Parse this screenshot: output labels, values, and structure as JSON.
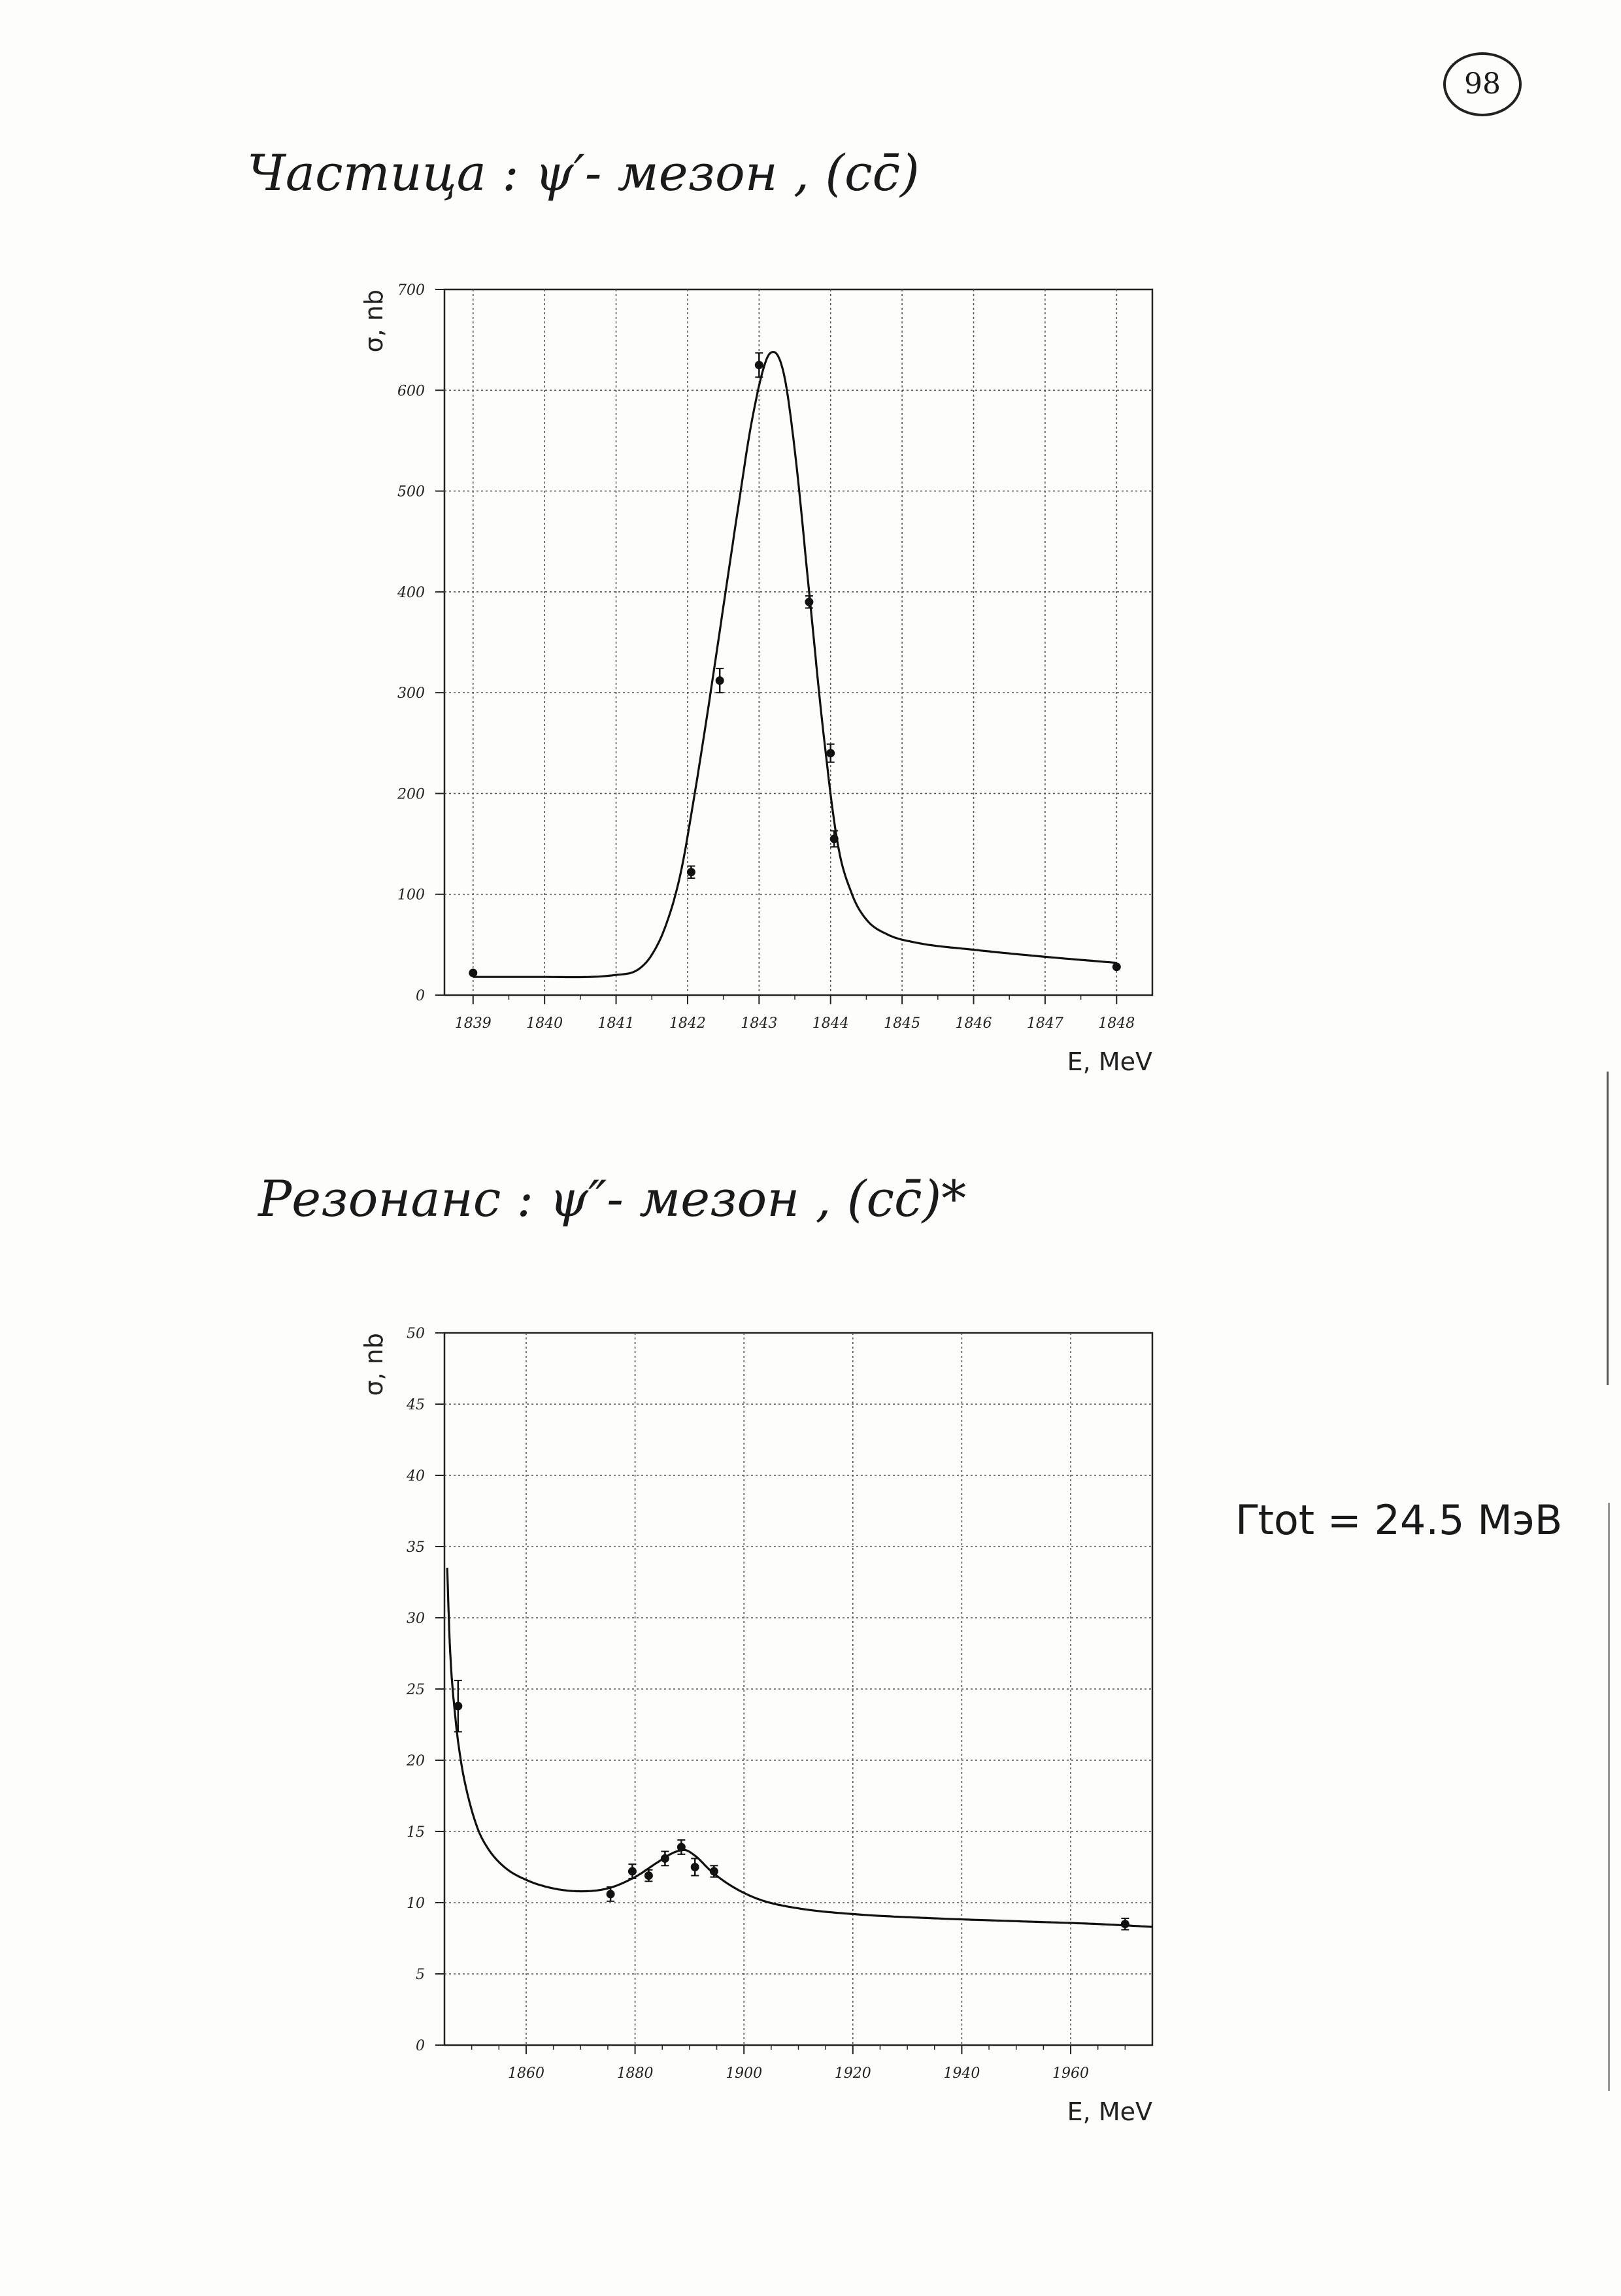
{
  "page": {
    "number": "98",
    "title1": "Частица :   ψ′- мезон , (cc̄)",
    "title2": "Резонанс :   ψ″- мезон , (cc̄)*",
    "gamma_text": "Γtot = 24.5 МэВ"
  },
  "chart_data": [
    {
      "type": "scatter",
      "title": "",
      "xlabel": "E, MeV",
      "ylabel": "σ, nb",
      "xlim": [
        1838.6,
        1848.5
      ],
      "ylim": [
        0,
        700
      ],
      "xticks": [
        1839,
        1840,
        1841,
        1842,
        1843,
        1844,
        1845,
        1846,
        1847,
        1848
      ],
      "yticks": [
        0,
        100,
        200,
        300,
        400,
        500,
        600,
        700
      ],
      "grid": true,
      "points": [
        {
          "x": 1839.0,
          "y": 22,
          "err": 0
        },
        {
          "x": 1842.05,
          "y": 122,
          "err": 6
        },
        {
          "x": 1842.45,
          "y": 312,
          "err": 12
        },
        {
          "x": 1843.0,
          "y": 625,
          "err": 12
        },
        {
          "x": 1843.7,
          "y": 390,
          "err": 6
        },
        {
          "x": 1844.0,
          "y": 240,
          "err": 9
        },
        {
          "x": 1844.05,
          "y": 155,
          "err": 8
        },
        {
          "x": 1848.0,
          "y": 28,
          "err": 0
        }
      ],
      "fit_curve": {
        "x": [
          1839.0,
          1840.0,
          1841.0,
          1841.3,
          1841.5,
          1841.7,
          1841.9,
          1842.1,
          1842.3,
          1842.5,
          1842.7,
          1842.9,
          1843.1,
          1843.2,
          1843.35,
          1843.5,
          1843.7,
          1843.9,
          1844.1,
          1844.3,
          1844.5,
          1844.8,
          1845.2,
          1846.0,
          1847.0,
          1848.0
        ],
        "y": [
          18,
          18,
          20,
          25,
          40,
          70,
          120,
          200,
          290,
          385,
          480,
          570,
          630,
          638,
          615,
          540,
          400,
          260,
          150,
          100,
          75,
          60,
          52,
          45,
          38,
          32
        ]
      }
    },
    {
      "type": "scatter",
      "title": "",
      "xlabel": "E, MeV",
      "ylabel": "σ, nb",
      "xlim": [
        1845,
        1975
      ],
      "ylim": [
        0,
        50
      ],
      "xticks": [
        1860,
        1880,
        1900,
        1920,
        1940,
        1960
      ],
      "yticks": [
        0,
        5,
        10,
        15,
        20,
        25,
        30,
        35,
        40,
        45,
        50
      ],
      "grid": true,
      "points": [
        {
          "x": 1847.5,
          "y": 23.8,
          "err": 1.8
        },
        {
          "x": 1875.5,
          "y": 10.6,
          "err": 0.5
        },
        {
          "x": 1879.5,
          "y": 12.2,
          "err": 0.5
        },
        {
          "x": 1882.5,
          "y": 11.9,
          "err": 0.4
        },
        {
          "x": 1885.5,
          "y": 13.1,
          "err": 0.5
        },
        {
          "x": 1888.5,
          "y": 13.9,
          "err": 0.5
        },
        {
          "x": 1891.0,
          "y": 12.5,
          "err": 0.6
        },
        {
          "x": 1894.5,
          "y": 12.2,
          "err": 0.4
        },
        {
          "x": 1970.0,
          "y": 8.5,
          "err": 0.4
        }
      ],
      "fit_curve": {
        "x": [
          1845.5,
          1846.0,
          1847.0,
          1848.0,
          1849.0,
          1851.0,
          1853.0,
          1856.0,
          1860.0,
          1865.0,
          1870.0,
          1875.0,
          1880.0,
          1884.0,
          1887.0,
          1889.0,
          1891.0,
          1894.0,
          1898.0,
          1903.0,
          1910.0,
          1920.0,
          1935.0,
          1950.0,
          1965.0,
          1975.0
        ],
        "y": [
          33.5,
          28.0,
          23.0,
          20.0,
          18.0,
          15.3,
          13.8,
          12.5,
          11.6,
          11.0,
          10.8,
          11.0,
          11.8,
          12.8,
          13.5,
          13.7,
          13.3,
          12.2,
          11.1,
          10.2,
          9.6,
          9.2,
          8.9,
          8.7,
          8.5,
          8.3
        ]
      }
    }
  ]
}
